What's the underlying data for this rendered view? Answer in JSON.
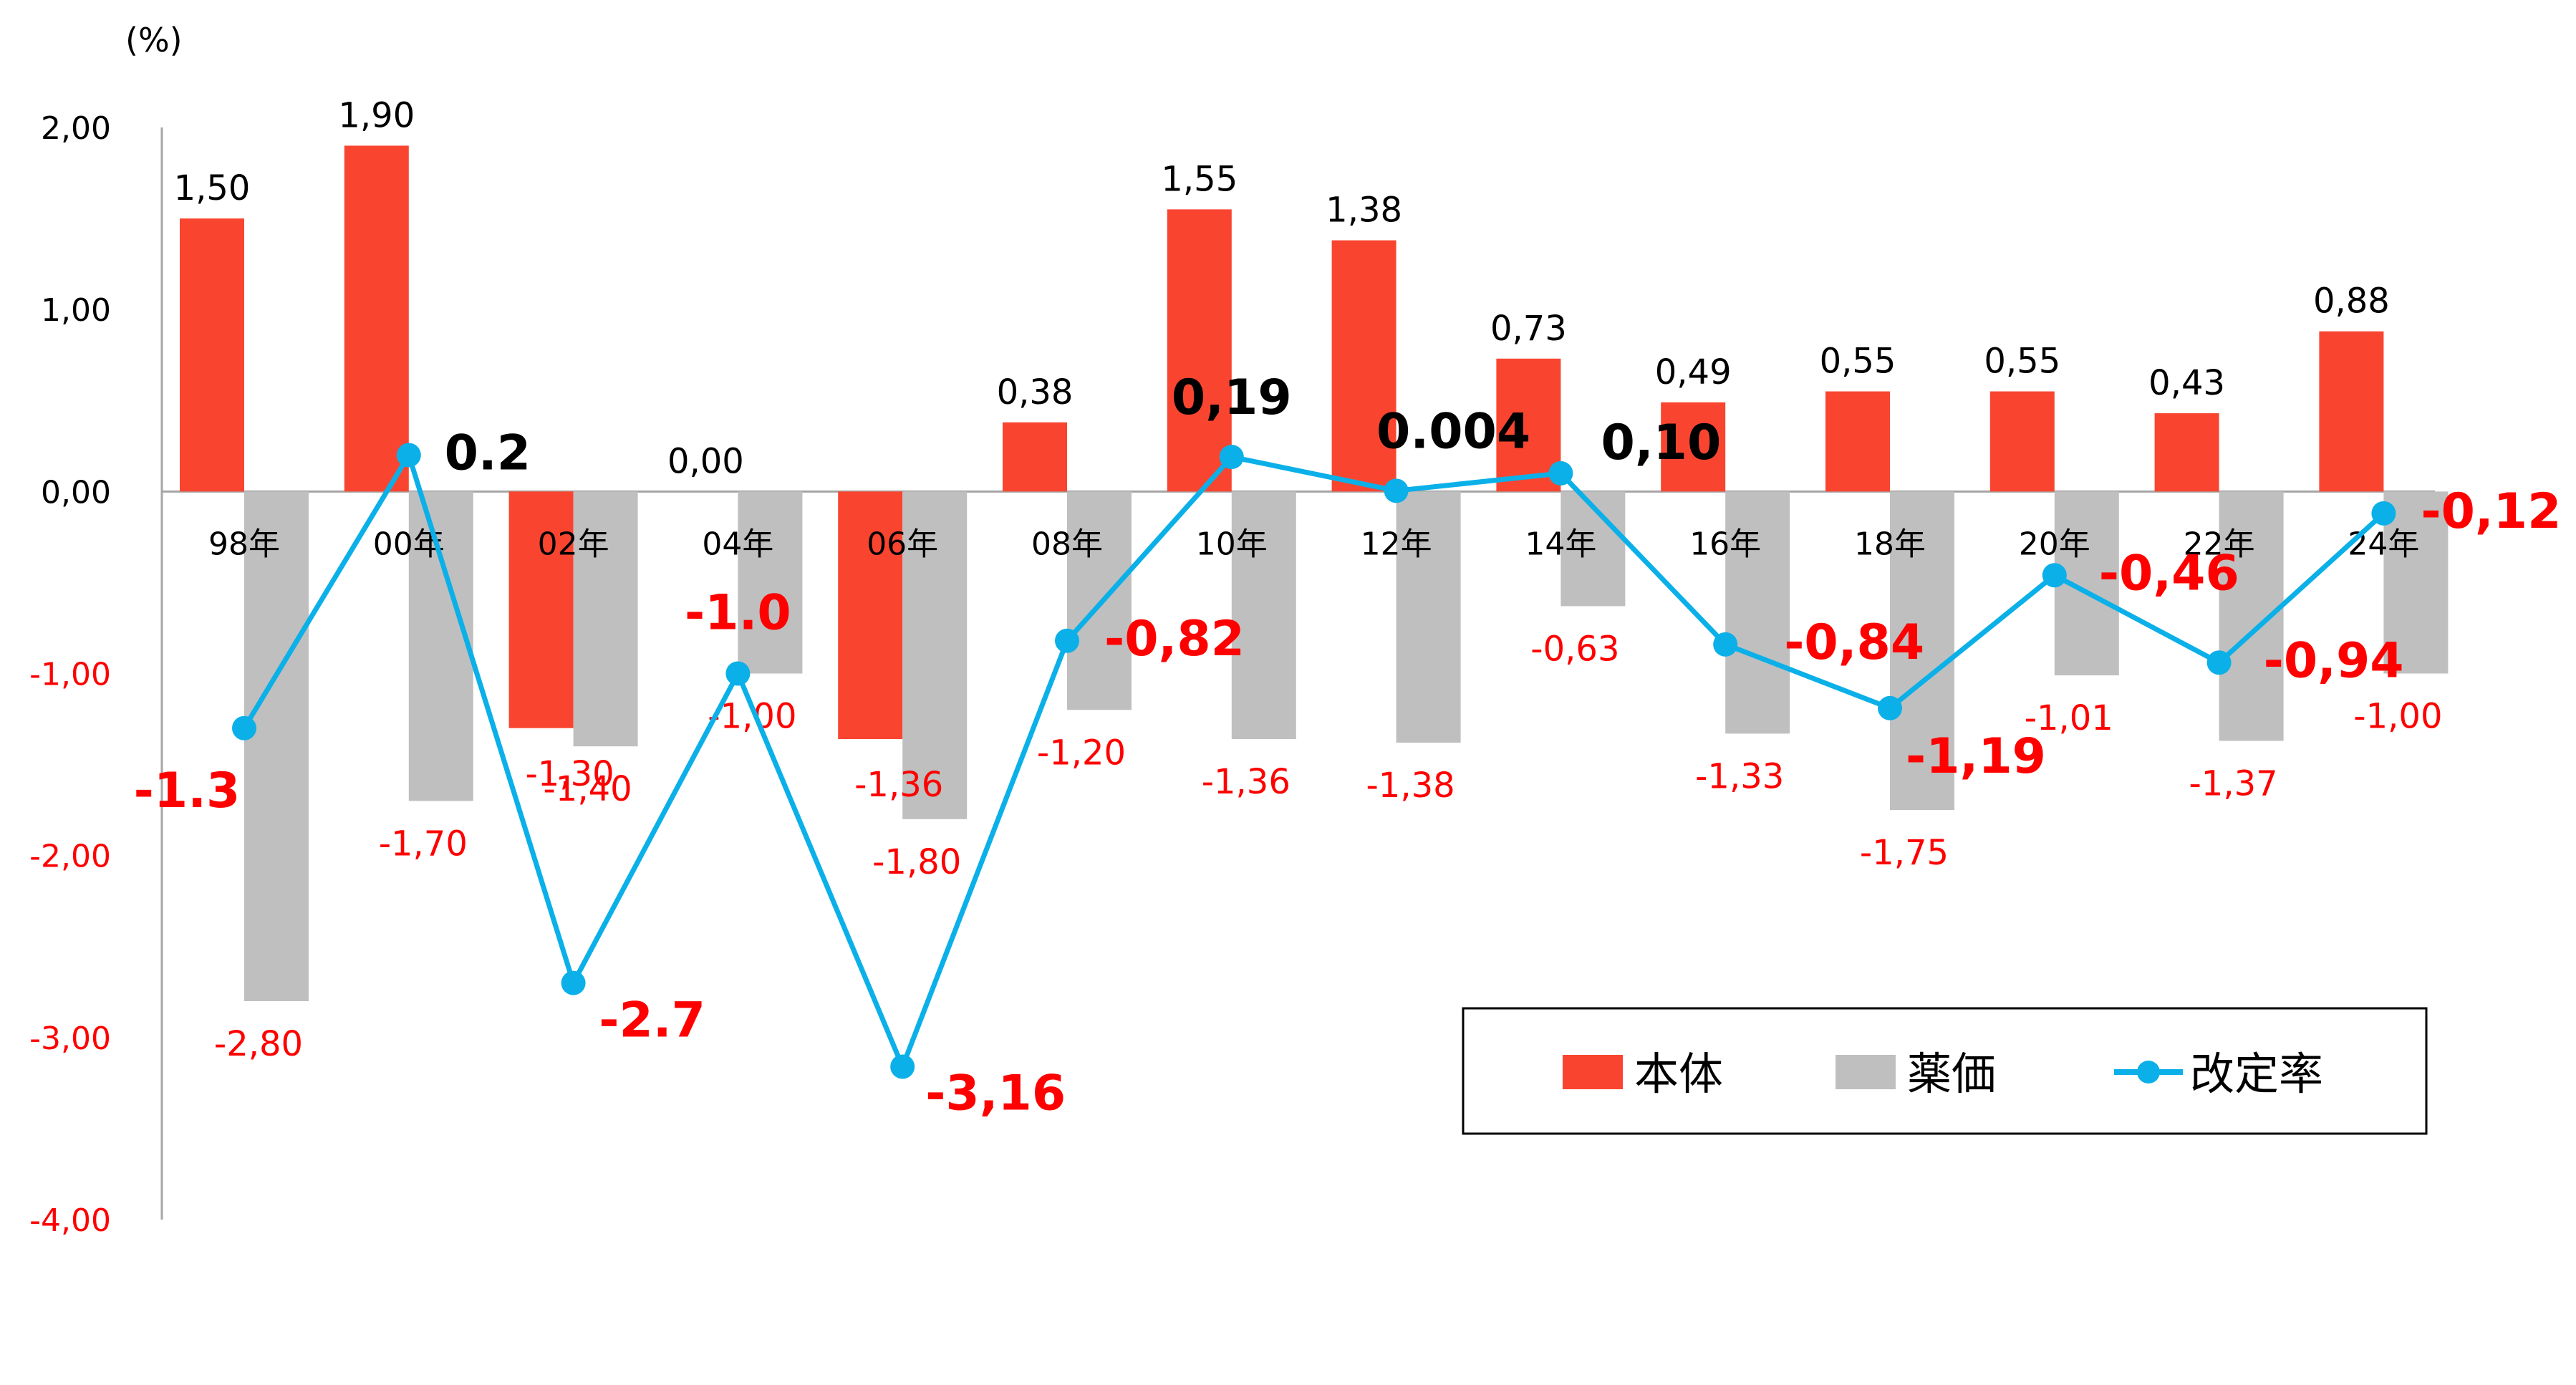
{
  "chart_data": {
    "type": "bar",
    "unit_label": "(%)",
    "categories": [
      "98年",
      "00年",
      "02年",
      "04年",
      "06年",
      "08年",
      "10年",
      "12年",
      "14年",
      "16年",
      "18年",
      "20年",
      "22年",
      "24年"
    ],
    "ylim": [
      -4.0,
      2.0
    ],
    "yticks": [
      "2,00",
      "1,00",
      "0,00",
      "-1,00",
      "-2,00",
      "-3,00",
      "-4,00"
    ],
    "series": [
      {
        "name": "本体",
        "kind": "bar",
        "color": "#f94530",
        "values": [
          1.5,
          1.9,
          -1.3,
          0.0,
          -1.36,
          0.38,
          1.55,
          1.38,
          0.73,
          0.49,
          0.55,
          0.55,
          0.43,
          0.88
        ],
        "labels": [
          "1,50",
          "1,90",
          "-1,30",
          "0,00",
          "-1,36",
          "0,38",
          "1,55",
          "1,38",
          "0,73",
          "0,49",
          "0,55",
          "0,55",
          "0,43",
          "0,88"
        ]
      },
      {
        "name": "薬価",
        "kind": "bar",
        "color": "#bfbfbf",
        "values": [
          -2.8,
          -1.7,
          -1.4,
          -1.0,
          -1.8,
          -1.2,
          -1.36,
          -1.38,
          -0.63,
          -1.33,
          -1.75,
          -1.01,
          -1.37,
          -1.0
        ],
        "labels": [
          "-2,80",
          "-1,70",
          "-1,40",
          "-1,00",
          "-1,80",
          "-1,20",
          "-1,36",
          "-1,38",
          "-0,63",
          "-1,33",
          "-1,75",
          "-1,01",
          "-1,37",
          "-1,00"
        ]
      },
      {
        "name": "改定率",
        "kind": "line",
        "color": "#0bb0e8",
        "values": [
          -1.3,
          0.2,
          -2.7,
          -1.0,
          -3.16,
          -0.82,
          0.19,
          0.004,
          0.1,
          -0.84,
          -1.19,
          -0.46,
          -0.94,
          -0.12
        ],
        "labels": [
          "-1.3",
          "0.2",
          "-2.7",
          "-1.0",
          "-3,16",
          "-0,82",
          "0,19",
          "0.004",
          "0,10",
          "-0,84",
          "-1,19",
          "-0,46",
          "-0,94",
          "-0,12"
        ]
      }
    ],
    "legend": {
      "position": "bottom-right",
      "items": [
        "本体",
        "薬価",
        "改定率"
      ]
    },
    "grid": false
  },
  "colors": {
    "positive_text": "#000000",
    "negative_text": "#ff0000"
  }
}
